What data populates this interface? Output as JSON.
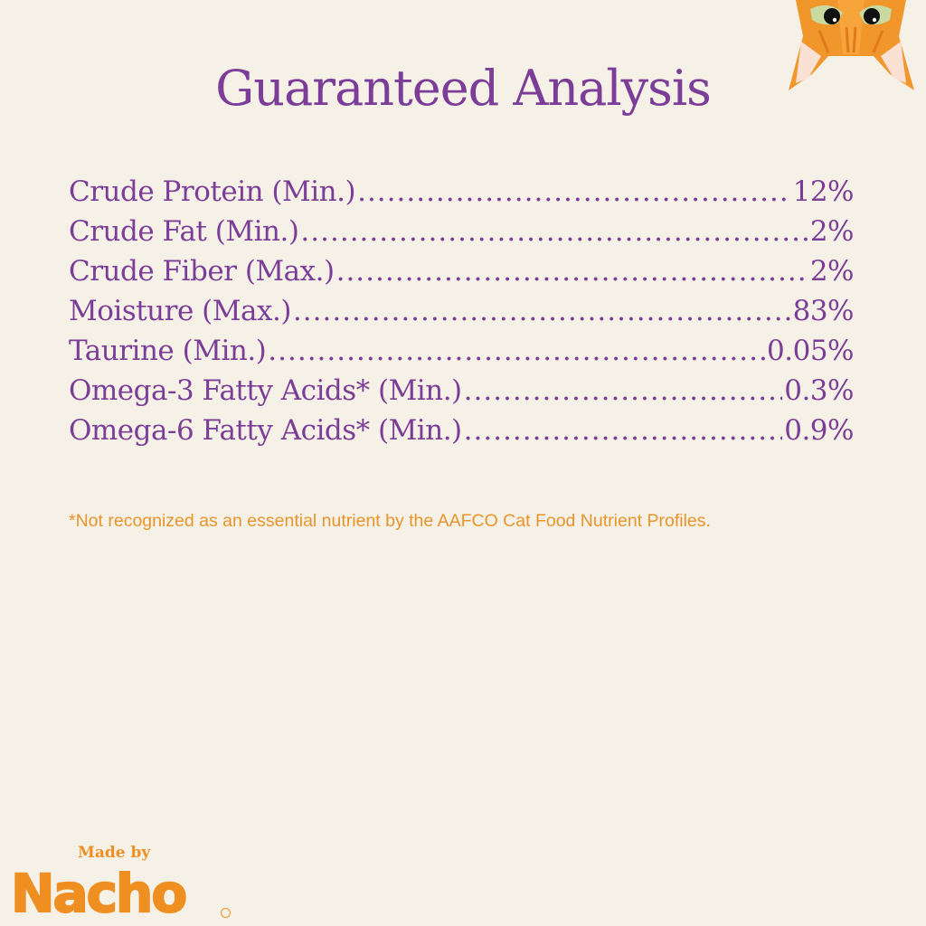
{
  "title": "Guaranteed Analysis",
  "rows": [
    {
      "label": "Crude Protein (Min.)",
      "value": "12%"
    },
    {
      "label": "Crude Fat (Min.)",
      "value": "2%"
    },
    {
      "label": "Crude Fiber (Max.)",
      "value": "2%"
    },
    {
      "label": "Moisture (Max.)",
      "value": "83%"
    },
    {
      "label": "Taurine (Min.)",
      "value": "0.05%"
    },
    {
      "label": "Omega-3 Fatty Acids* (Min.)",
      "value": "0.3%"
    },
    {
      "label": "Omega-6 Fatty Acids* (Min.)",
      "value": "0.9%"
    }
  ],
  "footnote": "*Not recognized as an essential nutrient by the AAFCO Cat Food Nutrient Profiles.",
  "logo": {
    "made_by": "Made by",
    "brand": "Nacho",
    "tm": "TM"
  },
  "colors": {
    "background": "#f6f1e7",
    "purple": "#7b3d97",
    "orange": "#ef8f22"
  },
  "icons": {
    "mascot": "orange-cat-face-icon"
  }
}
